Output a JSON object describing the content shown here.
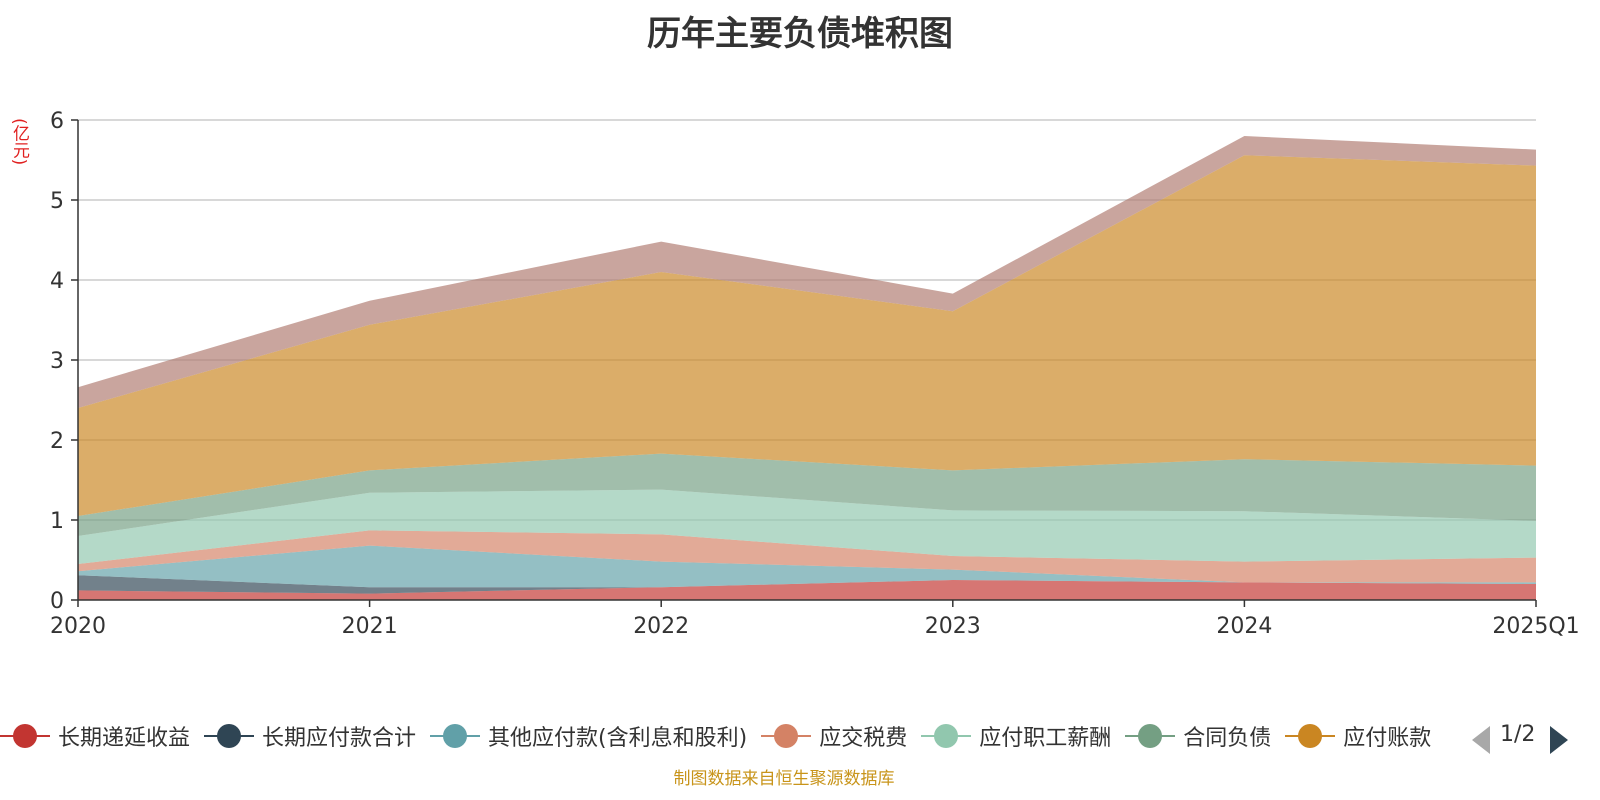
{
  "title": "历年主要负债堆积图",
  "unit_label": "(亿元)",
  "source_note": "制图数据来自恒生聚源数据库",
  "pager": {
    "text": "1/2"
  },
  "colors": {
    "axis": "#333333",
    "grid": "#cccccc",
    "title": "#333333",
    "unit": "#e02020",
    "source": "#c8941a"
  },
  "chart_data": {
    "type": "area",
    "stacked": true,
    "x": [
      "2020",
      "2021",
      "2022",
      "2023",
      "2024",
      "2025Q1"
    ],
    "ylim": [
      0,
      6
    ],
    "yticks": [
      0,
      1,
      2,
      3,
      4,
      5,
      6
    ],
    "grid": true,
    "legend_position": "bottom",
    "series": [
      {
        "name": "长期递延收益",
        "color": "#c23531",
        "legend_color": "#c23531",
        "values": [
          0.12,
          0.08,
          0.16,
          0.25,
          0.22,
          0.2
        ]
      },
      {
        "name": "长期应付款合计",
        "color": "#2f4554",
        "legend_color": "#2f4554",
        "values": [
          0.19,
          0.08,
          0.0,
          0.0,
          0.0,
          0.0
        ]
      },
      {
        "name": "其他应付款(含利息和股利)",
        "color": "#61a0a8",
        "legend_color": "#61a0a8",
        "values": [
          0.05,
          0.52,
          0.32,
          0.13,
          0.0,
          0.02
        ]
      },
      {
        "name": "应交税费",
        "color": "#d48265",
        "legend_color": "#d48265",
        "values": [
          0.09,
          0.19,
          0.34,
          0.17,
          0.26,
          0.31
        ]
      },
      {
        "name": "应付职工薪酬",
        "color": "#91c7ae",
        "legend_color": "#91c7ae",
        "values": [
          0.35,
          0.47,
          0.56,
          0.57,
          0.63,
          0.46
        ]
      },
      {
        "name": "合同负债",
        "color": "#749f83",
        "legend_color": "#749f83",
        "values": [
          0.25,
          0.28,
          0.45,
          0.5,
          0.65,
          0.69
        ]
      },
      {
        "name": "应付账款",
        "color": "#ca8622",
        "legend_color": "#ca8622",
        "values": [
          1.35,
          1.82,
          2.27,
          1.99,
          3.8,
          3.75
        ]
      },
      {
        "name": "",
        "color": "#b07a70",
        "values": [
          0.26,
          0.3,
          0.38,
          0.22,
          0.24,
          0.2
        ]
      }
    ],
    "legend_visible": [
      {
        "name": "长期递延收益",
        "color": "#c23531"
      },
      {
        "name": "长期应付款合计",
        "color": "#2f4554"
      },
      {
        "name": "其他应付款(含利息和股利)",
        "color": "#61a0a8"
      },
      {
        "name": "应交税费",
        "color": "#d48265"
      },
      {
        "name": "应付职工薪酬",
        "color": "#91c7ae"
      },
      {
        "name": "合同负债",
        "color": "#749f83"
      },
      {
        "name": "应付账款",
        "color": "#ca8622"
      }
    ]
  }
}
